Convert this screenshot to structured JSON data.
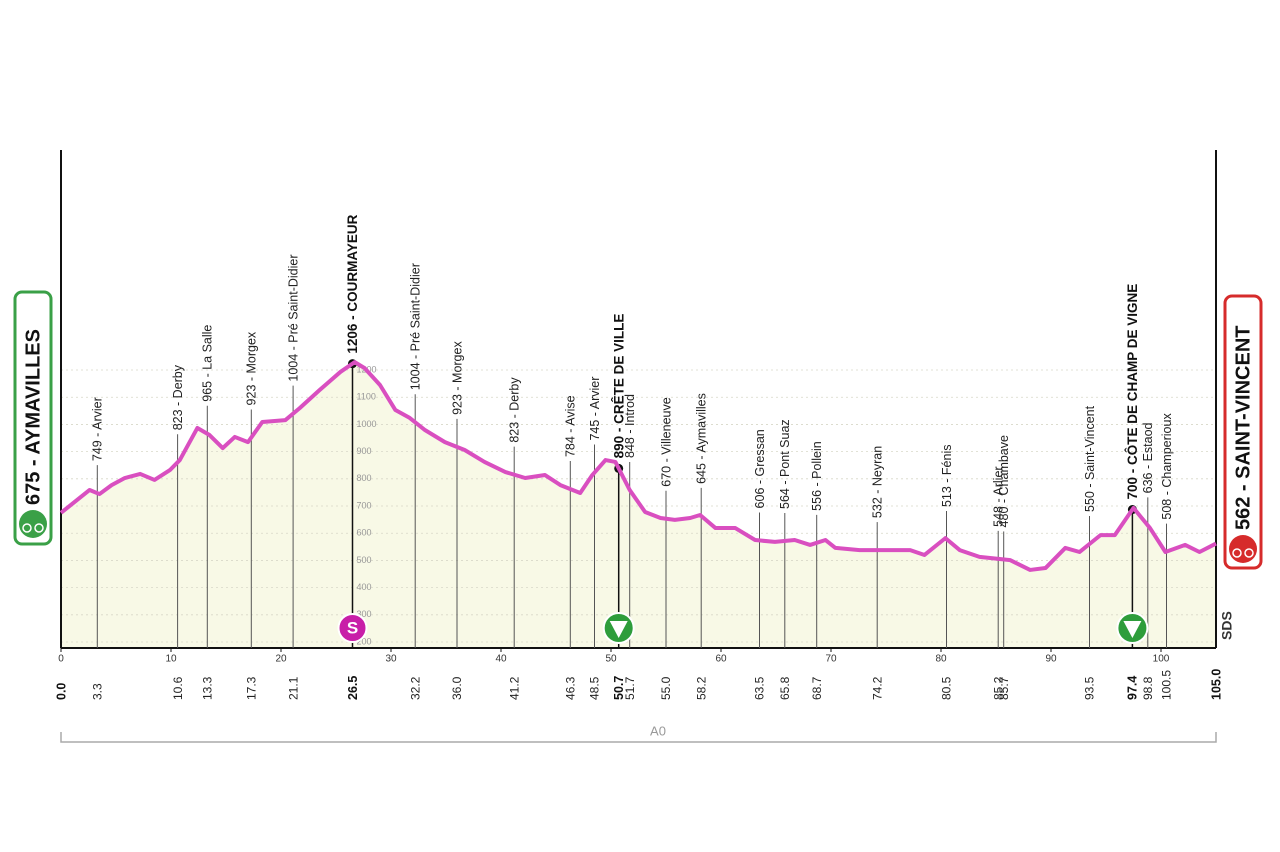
{
  "chart_data": {
    "type": "profile",
    "start": {
      "label": "675 - AYMAVILLES",
      "km": {
        "value": 0,
        "label": "0.0"
      }
    },
    "finish": {
      "label": "562 - SAINT-VINCENT",
      "km": {
        "value": 105,
        "label": "105.0"
      }
    },
    "xlim": [
      0,
      105
    ],
    "xticks": [
      0,
      10,
      20,
      30,
      40,
      50,
      60,
      70,
      80,
      90,
      100
    ],
    "ylim": [
      178,
      2009
    ],
    "yticks": [
      200,
      300,
      400,
      500,
      600,
      700,
      800,
      900,
      1000,
      1100,
      1200
    ],
    "grid": true,
    "series": [
      {
        "color": "#d94fc0",
        "fill": "#f8f9e6",
        "x": [
          0,
          2.6,
          3.5,
          4.6,
          5.8,
          7.2,
          8.5,
          9.9,
          10.8,
          12.4,
          13.5,
          14.7,
          15.8,
          17,
          18.3,
          20.4,
          21.7,
          23.5,
          25.4,
          26.7,
          27.6,
          29,
          30.4,
          31.7,
          33.1,
          34.9,
          36.7,
          38.5,
          40.4,
          42.2,
          44,
          45.4,
          47.2,
          48.3,
          49.5,
          50.4,
          51.7,
          53.1,
          54.5,
          55.8,
          57.2,
          58.1,
          59.5,
          61.3,
          63.1,
          64.9,
          66.7,
          68.1,
          69.5,
          70.4,
          72.6,
          75.4,
          77.2,
          78.5,
          80.4,
          81.7,
          83.5,
          86.3,
          88.1,
          89.5,
          91.3,
          92.6,
          94.5,
          95.8,
          97.5,
          99,
          100.4,
          102.2,
          103.5,
          105
        ],
        "values": [
          675,
          759,
          744,
          777,
          803,
          818,
          796,
          832,
          869,
          987,
          961,
          913,
          954,
          935,
          1009,
          1016,
          1060,
          1126,
          1193,
          1229,
          1207,
          1145,
          1053,
          1024,
          979,
          935,
          906,
          862,
          825,
          803,
          814,
          777,
          748,
          814,
          869,
          862,
          759,
          678,
          656,
          649,
          656,
          667,
          619,
          619,
          575,
          568,
          575,
          557,
          575,
          546,
          538,
          538,
          538,
          520,
          582,
          538,
          513,
          501,
          465,
          472,
          546,
          531,
          593,
          593,
          693,
          619,
          531,
          557,
          531,
          562
        ]
      }
    ],
    "waypoints": [
      {
        "km": 3.3,
        "name": "749 - Arvier"
      },
      {
        "km": 10.6,
        "name": "823 - Derby"
      },
      {
        "km": 13.3,
        "name": "965 - La Salle"
      },
      {
        "km": 17.3,
        "name": "923 - Morgex"
      },
      {
        "km": 21.1,
        "name": "1004 - Pré Saint-Didier"
      },
      {
        "km": 26.5,
        "name": "1206 - COURMAYEUR",
        "bold": true
      },
      {
        "km": 32.2,
        "name": "1004 - Pré Saint-Didier"
      },
      {
        "km": {
          "value": 36,
          "label": "36.0"
        },
        "name": "923 - Morgex"
      },
      {
        "km": 41.2,
        "name": "823 - Derby"
      },
      {
        "km": 46.3,
        "name": "784 - Avise"
      },
      {
        "km": 48.5,
        "name": "745 - Arvier"
      },
      {
        "km": 50.7,
        "name": "890 - CRÊTE DE VILLE",
        "bold": true
      },
      {
        "km": 51.7,
        "name": "848 - Introd"
      },
      {
        "km": {
          "value": 55,
          "label": "55.0"
        },
        "name": "670 - Villeneuve"
      },
      {
        "km": 58.2,
        "name": "645 - Aymavilles"
      },
      {
        "km": 63.5,
        "name": "606 - Gressan"
      },
      {
        "km": 65.8,
        "name": "564 - Pont Suaz"
      },
      {
        "km": 68.7,
        "name": "556 - Pollein"
      },
      {
        "km": 74.2,
        "name": "532 - Neyran"
      },
      {
        "km": 80.5,
        "name": "513 - Fénis"
      },
      {
        "km": 85.2,
        "name": "548 - Arlier"
      },
      {
        "km": 85.7,
        "name": "480 - Chambave"
      },
      {
        "km": 93.5,
        "name": "550 - Saint-Vincent"
      },
      {
        "km": 97.4,
        "name": "700 - CÔTE DE CHAMP DE VIGNE",
        "bold": true
      },
      {
        "km": 98.8,
        "name": "636 - Estaod"
      },
      {
        "km": 100.5,
        "name": "508 - Champerioux"
      }
    ],
    "sprint": {
      "km": 26.5,
      "label": "S"
    },
    "kom_km": [
      50.7,
      97.4
    ],
    "road": "A0",
    "logo": "SDS"
  }
}
